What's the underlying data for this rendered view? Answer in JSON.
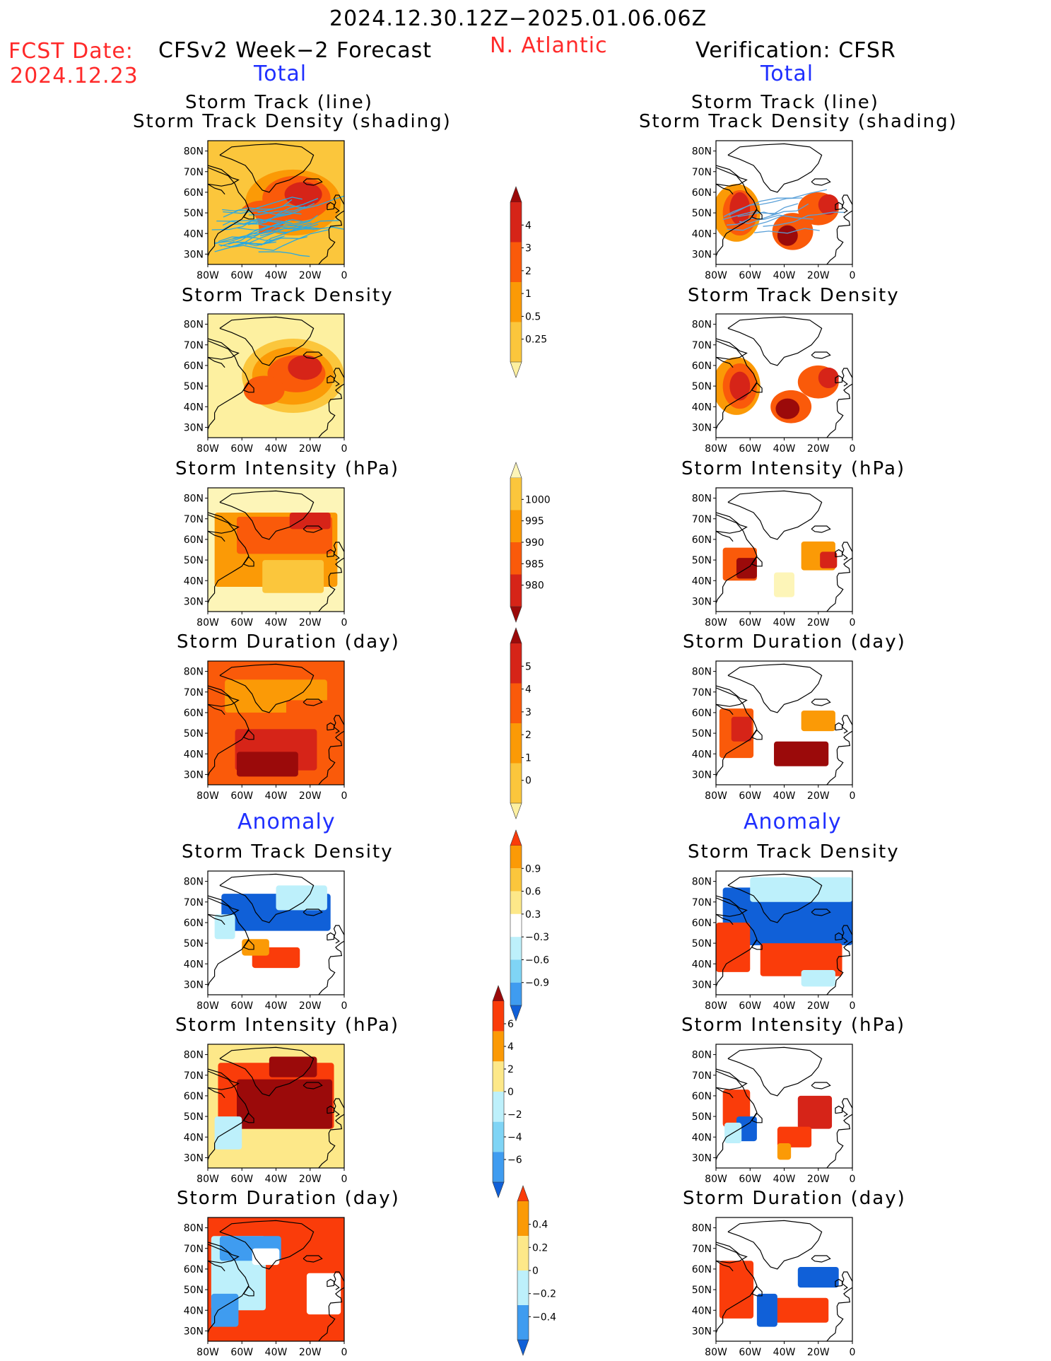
{
  "header": {
    "period": "2024.12.30.12Z−2025.01.06.06Z",
    "fcst_label": "FCST Date:",
    "fcst_date": "2024.12.23",
    "left_title": "CFSv2 Week−2 Forecast",
    "region": "N. Atlantic",
    "right_title": "Verification: CFSR"
  },
  "sections": {
    "total": "Total",
    "anomaly": "Anomaly"
  },
  "panel_titles": {
    "track_line": "Storm Track (line)",
    "track_shading": "Storm Track Density (shading)",
    "density": "Storm Track Density",
    "intensity": "Storm Intensity (hPa)",
    "duration": "Storm Duration (day)"
  },
  "axes": {
    "lat_labels": [
      "80N",
      "70N",
      "60N",
      "50N",
      "40N",
      "30N"
    ],
    "lon_labels": [
      "80W",
      "60W",
      "40W",
      "20W",
      "0"
    ],
    "lon_range": [
      -80,
      0
    ],
    "lat_range": [
      25,
      85
    ]
  },
  "colorbars": [
    {
      "id": "density",
      "labels": [
        "4",
        "3",
        "2",
        "1",
        "0.5",
        "0.25"
      ],
      "colors": [
        "#9b0a0a",
        "#d62418",
        "#fa5a0a",
        "#fb9a06",
        "#fbc63c",
        "#fdf0a0"
      ]
    },
    {
      "id": "intensity",
      "labels": [
        "1000",
        "995",
        "990",
        "985",
        "980"
      ],
      "colors": [
        "#fdf5b8",
        "#fbc63c",
        "#fb9a06",
        "#fa5a0a",
        "#d62418",
        "#9b0a0a"
      ]
    },
    {
      "id": "duration",
      "labels": [
        "5",
        "4",
        "3",
        "2",
        "1",
        "0"
      ],
      "colors": [
        "#9b0a0a",
        "#d62418",
        "#fa5a0a",
        "#fb9a06",
        "#fbc63c",
        "#fdf0a0"
      ]
    },
    {
      "id": "anom_density",
      "labels": [
        "0.9",
        "0.6",
        "0.3",
        "−0.3",
        "−0.6",
        "−0.9"
      ],
      "colors": [
        "#fa3c0a",
        "#fb9a06",
        "#fbc63c",
        "#fde889",
        "#ffffff",
        "#bdf0fb",
        "#7fd4f5",
        "#3f9cf0",
        "#1060d8"
      ]
    },
    {
      "id": "anom_intensity",
      "labels": [
        "6",
        "4",
        "2",
        "0",
        "−2",
        "−4",
        "−6"
      ],
      "colors": [
        "#9b0a0a",
        "#fa3c0a",
        "#fb9a06",
        "#fde889",
        "#bdf0fb",
        "#7fd4f5",
        "#3f9cf0",
        "#1060d8"
      ]
    },
    {
      "id": "anom_duration",
      "labels": [
        "0.4",
        "0.2",
        "0",
        "−0.2",
        "−0.4"
      ],
      "colors": [
        "#fa3c0a",
        "#fb9a06",
        "#fde889",
        "#bdf0fb",
        "#3f9cf0",
        "#1060d8"
      ]
    }
  ],
  "fields": {
    "left_track": {
      "bg": "#fbc63c",
      "blobs": [
        [
          -30,
          55,
          28,
          16,
          "#fb9a06"
        ],
        [
          -28,
          57,
          20,
          11,
          "#fa5a0a"
        ],
        [
          -24,
          59,
          11,
          6,
          "#d62418"
        ],
        [
          -48,
          48,
          14,
          8,
          "#fa5a0a"
        ],
        [
          -60,
          42,
          10,
          10,
          "#fbc63c"
        ]
      ],
      "tracks": "#2aa9e0"
    },
    "right_track": {
      "bg": "#ffffff",
      "blobs": [
        [
          -68,
          50,
          14,
          14,
          "#fb9a06"
        ],
        [
          -66,
          50,
          10,
          11,
          "#fa5a0a"
        ],
        [
          -66,
          52,
          6,
          8,
          "#d62418"
        ],
        [
          -35,
          41,
          12,
          9,
          "#fa5a0a"
        ],
        [
          -38,
          39,
          6,
          5,
          "#9b0a0a"
        ],
        [
          -20,
          52,
          12,
          8,
          "#fa5a0a"
        ],
        [
          -14,
          54,
          6,
          5,
          "#d62418"
        ]
      ],
      "tracks": "#5aa0d8"
    },
    "left_density": {
      "bg": "#fdf0a0",
      "blobs": [
        [
          -30,
          55,
          30,
          18,
          "#fbc63c"
        ],
        [
          -30,
          55,
          24,
          14,
          "#fb9a06"
        ],
        [
          -28,
          56,
          17,
          9,
          "#fa5a0a"
        ],
        [
          -23,
          59,
          10,
          6,
          "#d62418"
        ],
        [
          -47,
          48,
          12,
          7,
          "#fa5a0a"
        ]
      ]
    },
    "right_density": {
      "bg": "#ffffff",
      "blobs": [
        [
          -68,
          50,
          14,
          14,
          "#fb9a06"
        ],
        [
          -66,
          50,
          10,
          11,
          "#fa5a0a"
        ],
        [
          -66,
          50,
          6,
          7,
          "#d62418"
        ],
        [
          -36,
          40,
          12,
          8,
          "#fa5a0a"
        ],
        [
          -38,
          39,
          7,
          5,
          "#9b0a0a"
        ],
        [
          -20,
          52,
          12,
          8,
          "#fa5a0a"
        ],
        [
          -14,
          54,
          6,
          5,
          "#d62418"
        ]
      ]
    },
    "left_intensity": {
      "bg": "#fdf5b8",
      "blobs": [
        [
          -40,
          55,
          36,
          18,
          "#fb9a06"
        ],
        [
          -35,
          62,
          28,
          9,
          "#fa5a0a"
        ],
        [
          -20,
          69,
          12,
          4,
          "#d62418"
        ],
        [
          -30,
          42,
          18,
          8,
          "#fbc63c"
        ]
      ]
    },
    "right_intensity": {
      "bg": "#ffffff",
      "blobs": [
        [
          -66,
          48,
          10,
          8,
          "#fa5a0a"
        ],
        [
          -62,
          46,
          6,
          5,
          "#9b0a0a"
        ],
        [
          -40,
          38,
          6,
          6,
          "#fdf5b8"
        ],
        [
          -20,
          52,
          10,
          7,
          "#fb9a06"
        ],
        [
          -14,
          50,
          5,
          4,
          "#d62418"
        ]
      ]
    },
    "left_duration": {
      "bg": "#fa5a0a",
      "blobs": [
        [
          -40,
          68,
          30,
          8,
          "#fb9a06"
        ],
        [
          -40,
          42,
          24,
          10,
          "#d62418"
        ],
        [
          -45,
          35,
          18,
          6,
          "#9b0a0a"
        ],
        [
          -20,
          60,
          14,
          6,
          "#fa5a0a"
        ]
      ]
    },
    "right_duration": {
      "bg": "#ffffff",
      "blobs": [
        [
          -68,
          50,
          10,
          12,
          "#fa5a0a"
        ],
        [
          -65,
          52,
          6,
          6,
          "#d62418"
        ],
        [
          -30,
          40,
          16,
          6,
          "#9b0a0a"
        ],
        [
          -20,
          56,
          10,
          5,
          "#fb9a06"
        ]
      ]
    },
    "left_anom_density": {
      "bg": "#ffffff",
      "blobs": [
        [
          -40,
          65,
          32,
          9,
          "#1060d8"
        ],
        [
          -25,
          72,
          15,
          6,
          "#bdf0fb"
        ],
        [
          -40,
          43,
          14,
          5,
          "#fa3c0a"
        ],
        [
          -52,
          48,
          8,
          4,
          "#fb9a06"
        ],
        [
          -70,
          58,
          6,
          6,
          "#bdf0fb"
        ]
      ]
    },
    "right_anom_density": {
      "bg": "#ffffff",
      "blobs": [
        [
          -38,
          63,
          38,
          14,
          "#1060d8"
        ],
        [
          -30,
          76,
          30,
          6,
          "#bdf0fb"
        ],
        [
          -70,
          48,
          10,
          12,
          "#fa3c0a"
        ],
        [
          -30,
          42,
          24,
          8,
          "#fa3c0a"
        ],
        [
          -20,
          33,
          10,
          4,
          "#bdf0fb"
        ]
      ]
    },
    "left_anom_intensity": {
      "bg": "#fde889",
      "blobs": [
        [
          -40,
          60,
          34,
          16,
          "#fa3c0a"
        ],
        [
          -35,
          56,
          28,
          12,
          "#9b0a0a"
        ],
        [
          -68,
          42,
          8,
          8,
          "#bdf0fb"
        ],
        [
          -30,
          74,
          14,
          5,
          "#9b0a0a"
        ]
      ]
    },
    "right_anom_intensity": {
      "bg": "#ffffff",
      "blobs": [
        [
          -68,
          54,
          8,
          9,
          "#fa3c0a"
        ],
        [
          -62,
          44,
          6,
          6,
          "#1060d8"
        ],
        [
          -70,
          42,
          5,
          5,
          "#bdf0fb"
        ],
        [
          -22,
          52,
          10,
          8,
          "#d62418"
        ],
        [
          -34,
          40,
          10,
          5,
          "#fa3c0a"
        ],
        [
          -40,
          33,
          4,
          4,
          "#fb9a06"
        ]
      ]
    },
    "left_anom_duration": {
      "bg": "#fa3c0a",
      "blobs": [
        [
          -62,
          58,
          16,
          18,
          "#bdf0fb"
        ],
        [
          -55,
          70,
          18,
          6,
          "#3f9cf0"
        ],
        [
          -46,
          66,
          8,
          4,
          "#ffffff"
        ],
        [
          -70,
          40,
          8,
          8,
          "#3f9cf0"
        ],
        [
          -12,
          48,
          10,
          10,
          "#ffffff"
        ]
      ]
    },
    "right_anom_duration": {
      "bg": "#ffffff",
      "blobs": [
        [
          -68,
          50,
          10,
          14,
          "#fa3c0a"
        ],
        [
          -20,
          56,
          12,
          5,
          "#1060d8"
        ],
        [
          -30,
          40,
          16,
          6,
          "#fa3c0a"
        ],
        [
          -50,
          40,
          6,
          8,
          "#1060d8"
        ]
      ]
    }
  }
}
